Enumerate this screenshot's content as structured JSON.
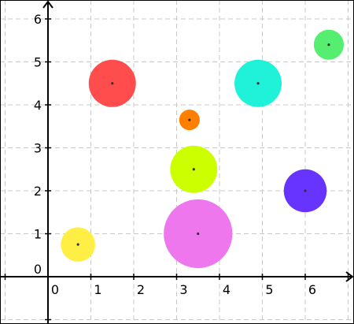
{
  "chart_data": {
    "type": "scatter",
    "title": "",
    "xlabel": "",
    "ylabel": "",
    "xlim": [
      -1,
      7
    ],
    "ylim": [
      -1,
      6.5
    ],
    "grid": true,
    "x_ticks": [
      0,
      1,
      2,
      3,
      4,
      5,
      6
    ],
    "y_ticks": [
      0,
      1,
      2,
      3,
      4,
      5,
      6
    ],
    "x_tick_labels": [
      "0",
      "1",
      "2",
      "3",
      "4",
      "5",
      "6"
    ],
    "y_tick_labels": [
      "0",
      "1",
      "2",
      "3",
      "4",
      "5",
      "6"
    ],
    "points": [
      {
        "name": "red",
        "x": 1.5,
        "y": 4.5,
        "radius": 0.55,
        "color": "#ff4d4d"
      },
      {
        "name": "orange",
        "x": 3.3,
        "y": 3.65,
        "radius": 0.24,
        "color": "#ff8000"
      },
      {
        "name": "cyan",
        "x": 4.9,
        "y": 4.5,
        "radius": 0.55,
        "color": "#1ff2d8"
      },
      {
        "name": "green",
        "x": 6.55,
        "y": 5.4,
        "radius": 0.35,
        "color": "#55ee70"
      },
      {
        "name": "lime",
        "x": 3.4,
        "y": 2.5,
        "radius": 0.55,
        "color": "#ccff00"
      },
      {
        "name": "blue",
        "x": 6.0,
        "y": 2.0,
        "radius": 0.5,
        "color": "#6633ff"
      },
      {
        "name": "magenta",
        "x": 3.5,
        "y": 1.0,
        "radius": 0.8,
        "color": "#ee77ee"
      },
      {
        "name": "yellow",
        "x": 0.7,
        "y": 0.75,
        "radius": 0.4,
        "color": "#ffee44"
      }
    ]
  }
}
